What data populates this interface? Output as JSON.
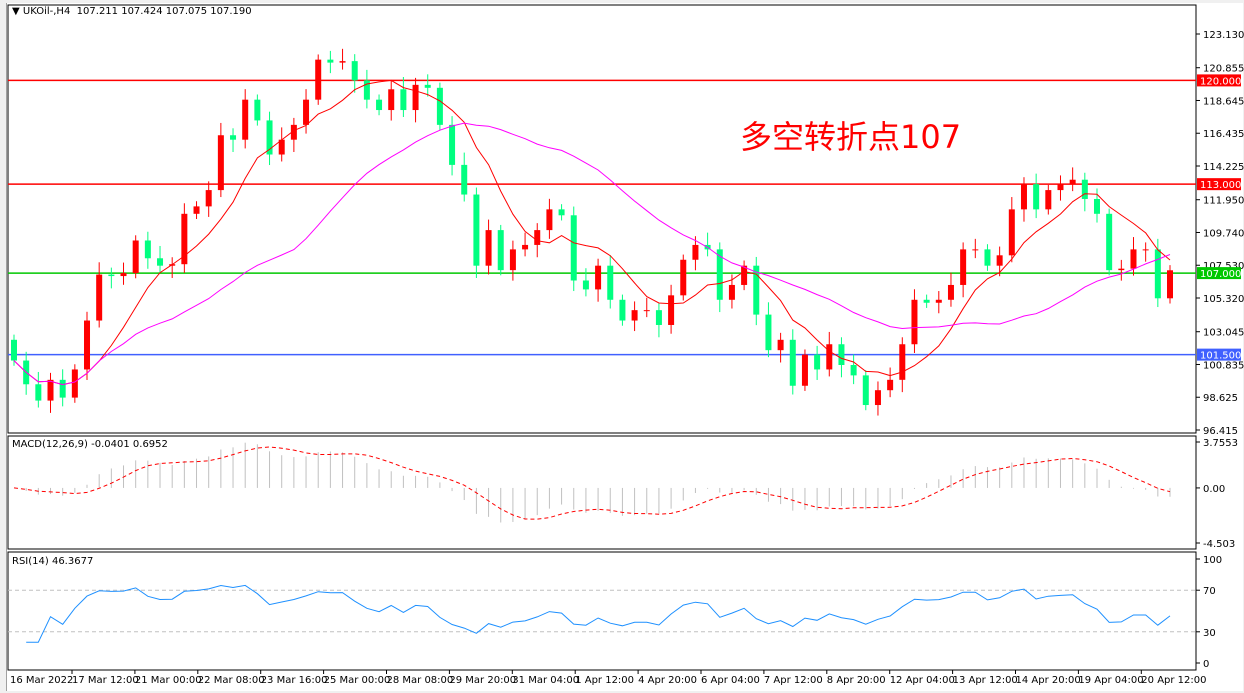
{
  "header": {
    "symbol": "UKOil-,H4",
    "ohlc": "107.211 107.424 107.075 107.190"
  },
  "annotation": "多空转折点107",
  "colors": {
    "bull": "#ff0000",
    "bear": "#00ff80",
    "ma_fast": "#ff0000",
    "ma_slow": "#ff00ff",
    "macd_signal": "#ff0000",
    "macd_hist": "#c0c0c0",
    "rsi": "#1e90ff"
  },
  "chart_data": {
    "type": "candlestick",
    "price_axis": {
      "ticks": [
        "123.130",
        "120.855",
        "118.645",
        "116.435",
        "114.225",
        "111.950",
        "109.740",
        "107.530",
        "105.320",
        "103.045",
        "100.835",
        "98.625",
        "96.415"
      ],
      "range": [
        96.415,
        123.13
      ]
    },
    "levels": [
      {
        "price": 120.0,
        "label": "120.000",
        "color": "#ff0000"
      },
      {
        "price": 113.0,
        "label": "113.000",
        "color": "#ff0000"
      },
      {
        "price": 107.0,
        "label": "107.000",
        "color": "#00c800"
      },
      {
        "price": 101.5,
        "label": "101.500",
        "color": "#4060ff"
      }
    ],
    "time_labels": [
      "16 Mar 2022",
      "17 Mar 12:00",
      "21 Mar 00:00",
      "22 Mar 08:00",
      "23 Mar 16:00",
      "25 Mar 00:00",
      "28 Mar 08:00",
      "29 Mar 20:00",
      "31 Mar 04:00",
      "1 Apr 12:00",
      "4 Apr 20:00",
      "6 Apr 04:00",
      "7 Apr 12:00",
      "8 Apr 20:00",
      "12 Apr 04:00",
      "13 Apr 12:00",
      "14 Apr 20:00",
      "19 Apr 04:00",
      "20 Apr 12:00"
    ],
    "closes": [
      101.1,
      99.5,
      98.4,
      99.8,
      98.6,
      100.5,
      103.8,
      106.9,
      106.8,
      107.0,
      109.2,
      108.0,
      107.5,
      107.6,
      111.0,
      111.5,
      112.6,
      116.3,
      116.0,
      118.7,
      117.3,
      115.0,
      116.0,
      117.0,
      118.7,
      121.4,
      121.2,
      121.3,
      120.0,
      118.7,
      118.0,
      119.4,
      118.0,
      119.7,
      119.5,
      117.0,
      114.3,
      112.3,
      107.5,
      109.9,
      107.2,
      108.6,
      108.9,
      109.9,
      111.3,
      110.9,
      106.5,
      105.9,
      107.5,
      105.2,
      103.8,
      104.5,
      104.5,
      103.5,
      105.5,
      107.9,
      108.9,
      108.6,
      105.2,
      106.2,
      107.5,
      104.2,
      101.8,
      102.5,
      99.4,
      101.5,
      100.5,
      102.2,
      100.8,
      100.1,
      98.1,
      99.1,
      99.8,
      102.2,
      105.2,
      105.0,
      105.2,
      106.2,
      108.6,
      108.6,
      107.5,
      108.2,
      111.3,
      113.0,
      111.3,
      112.6,
      113.0,
      113.3,
      112.0,
      111.0,
      107.2,
      107.3,
      108.6,
      108.6,
      105.3,
      107.19
    ],
    "first_open": 102.5,
    "macd": {
      "label": "MACD(12,26,9) -0.0401 0.6952",
      "ticks": [
        "3.7553",
        "0.00",
        "-4.503"
      ],
      "range": [
        -4.503,
        3.7553
      ]
    },
    "rsi": {
      "label": "RSI(14) 46.3677",
      "ticks": [
        "100",
        "70",
        "30",
        "0"
      ],
      "levels": [
        70,
        30
      ],
      "range": [
        0,
        100
      ]
    }
  }
}
